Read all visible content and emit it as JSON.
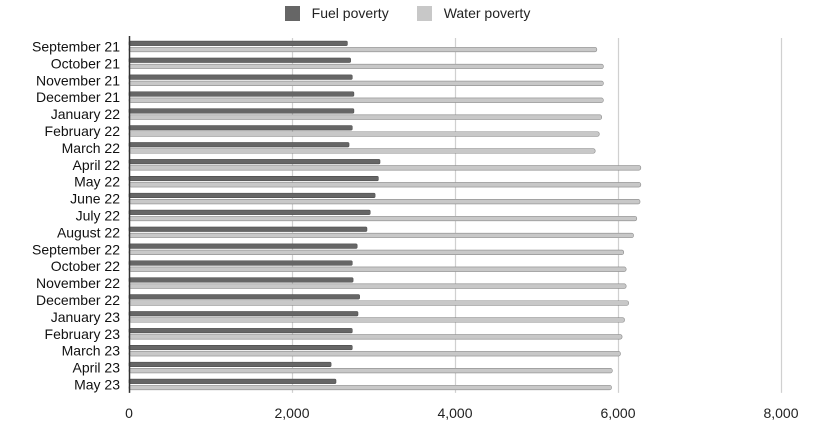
{
  "chart_data": {
    "type": "bar",
    "orientation": "horizontal",
    "categories": [
      "September 21",
      "October 21",
      "November 21",
      "December 21",
      "January 22",
      "February 22",
      "March 22",
      "April 22",
      "May 22",
      "June 22",
      "July 22",
      "August 22",
      "September 22",
      "October 22",
      "November 22",
      "December 22",
      "January 23",
      "February 23",
      "March 23",
      "April 23",
      "May 23"
    ],
    "series": [
      {
        "name": "Fuel poverty",
        "color": "#666666",
        "values": [
          2680,
          2720,
          2740,
          2760,
          2760,
          2740,
          2700,
          3080,
          3060,
          3020,
          2960,
          2920,
          2800,
          2740,
          2750,
          2830,
          2810,
          2740,
          2740,
          2480,
          2540
        ]
      },
      {
        "name": "Water poverty",
        "color": "#c8c8c8",
        "values": [
          5740,
          5820,
          5820,
          5820,
          5800,
          5770,
          5720,
          6280,
          6280,
          6270,
          6230,
          6190,
          6070,
          6100,
          6100,
          6130,
          6080,
          6050,
          6030,
          5930,
          5920
        ]
      }
    ],
    "xlim": [
      0,
      8000
    ],
    "xticks": [
      0,
      2000,
      4000,
      6000,
      8000
    ],
    "xtick_labels": [
      "0",
      "2,000",
      "4,000",
      "6,000",
      "8,000"
    ],
    "grid": true,
    "legend_position": "top-center",
    "title": "",
    "xlabel": "",
    "ylabel": ""
  }
}
